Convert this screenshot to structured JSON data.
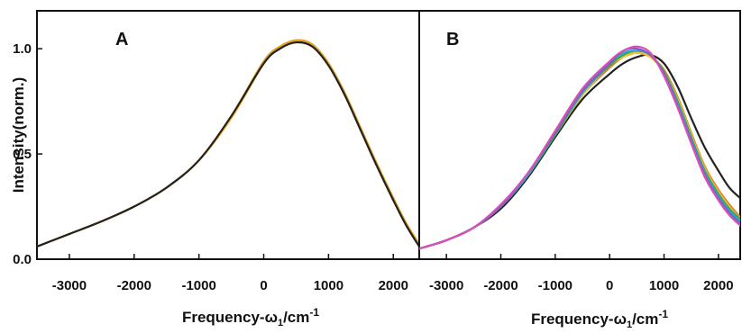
{
  "chart_data": [
    {
      "type": "line",
      "panel_label": "A",
      "xlabel_main": "Frequency-ω",
      "xlabel_sub": "1",
      "xlabel_unit": "/cm",
      "xlabel_sup": "-1",
      "ylabel": "Intensity(norm.)",
      "xlim": [
        -3500,
        2400
      ],
      "ylim": [
        0,
        1.18
      ],
      "xticks": [
        -3000,
        -2000,
        -1000,
        0,
        1000,
        2000
      ],
      "xtick_labels": [
        "-3000",
        "-2000",
        "-1000",
        "0",
        "1000",
        "2000"
      ],
      "yticks": [
        0,
        0.5,
        1.0
      ],
      "ytick_labels": [
        "0.0",
        "0.5",
        "1.0"
      ],
      "grid": false,
      "series": [
        {
          "color": "#f2c12e",
          "x": [
            -3500,
            -3000,
            -2500,
            -2000,
            -1500,
            -1000,
            -500,
            0,
            250,
            500,
            750,
            1000,
            1250,
            1500,
            1750,
            2000,
            2200,
            2400
          ],
          "y": [
            0.06,
            0.12,
            0.18,
            0.25,
            0.34,
            0.47,
            0.68,
            0.93,
            1.0,
            1.04,
            1.02,
            0.93,
            0.79,
            0.62,
            0.45,
            0.29,
            0.17,
            0.07
          ]
        },
        {
          "color": "#f5b82a",
          "x": [
            -3500,
            -3000,
            -2500,
            -2000,
            -1500,
            -1000,
            -500,
            0,
            250,
            500,
            750,
            1000,
            1250,
            1500,
            1750,
            2000,
            2200,
            2400
          ],
          "y": [
            0.06,
            0.12,
            0.18,
            0.25,
            0.34,
            0.47,
            0.67,
            0.93,
            1.0,
            1.03,
            1.01,
            0.92,
            0.78,
            0.61,
            0.44,
            0.28,
            0.16,
            0.07
          ]
        },
        {
          "color": "#e0a020",
          "x": [
            -3500,
            -3000,
            -2500,
            -2000,
            -1500,
            -1000,
            -500,
            0,
            250,
            500,
            750,
            1000,
            1250,
            1500,
            1750,
            2000,
            2200,
            2400
          ],
          "y": [
            0.06,
            0.12,
            0.18,
            0.25,
            0.34,
            0.47,
            0.68,
            0.94,
            1.01,
            1.04,
            1.02,
            0.93,
            0.79,
            0.62,
            0.45,
            0.29,
            0.17,
            0.07
          ]
        },
        {
          "color": "#222222",
          "x": [
            -3500,
            -3000,
            -2500,
            -2000,
            -1500,
            -1000,
            -500,
            0,
            250,
            500,
            750,
            1000,
            1250,
            1500,
            1750,
            2000,
            2200,
            2400
          ],
          "y": [
            0.06,
            0.12,
            0.18,
            0.25,
            0.34,
            0.47,
            0.68,
            0.93,
            1.0,
            1.03,
            1.01,
            0.92,
            0.78,
            0.61,
            0.44,
            0.28,
            0.16,
            0.06
          ]
        }
      ]
    },
    {
      "type": "line",
      "panel_label": "B",
      "xlabel_main": "Frequency-ω",
      "xlabel_sub": "1",
      "xlabel_unit": "/cm",
      "xlabel_sup": "-1",
      "xlim": [
        -3500,
        2400
      ],
      "ylim": [
        0,
        1.18
      ],
      "xticks": [
        -3000,
        -2000,
        -1000,
        0,
        1000,
        2000
      ],
      "xtick_labels": [
        "-3000",
        "-2000",
        "-1000",
        "0",
        "1000",
        "2000"
      ],
      "grid": false,
      "series": [
        {
          "color": "#222222",
          "x": [
            -3500,
            -3000,
            -2500,
            -2000,
            -1500,
            -1000,
            -500,
            0,
            250,
            500,
            750,
            1000,
            1250,
            1500,
            1750,
            2000,
            2200,
            2400
          ],
          "y": [
            0.05,
            0.09,
            0.15,
            0.24,
            0.39,
            0.58,
            0.76,
            0.88,
            0.93,
            0.96,
            0.97,
            0.93,
            0.82,
            0.67,
            0.53,
            0.42,
            0.34,
            0.29
          ]
        },
        {
          "color": "#e07b2a",
          "x": [
            -3500,
            -3000,
            -2500,
            -2000,
            -1500,
            -1000,
            -500,
            0,
            250,
            500,
            750,
            1000,
            1250,
            1500,
            1750,
            2000,
            2200,
            2400
          ],
          "y": [
            0.05,
            0.09,
            0.15,
            0.25,
            0.4,
            0.59,
            0.78,
            0.91,
            0.96,
            0.98,
            0.96,
            0.9,
            0.77,
            0.6,
            0.44,
            0.33,
            0.26,
            0.2
          ]
        },
        {
          "color": "#f2c12e",
          "x": [
            -3500,
            -3000,
            -2500,
            -2000,
            -1500,
            -1000,
            -500,
            0,
            250,
            500,
            750,
            1000,
            1250,
            1500,
            1750,
            2000,
            2200,
            2400
          ],
          "y": [
            0.05,
            0.09,
            0.15,
            0.25,
            0.4,
            0.59,
            0.78,
            0.92,
            0.96,
            0.98,
            0.96,
            0.89,
            0.76,
            0.59,
            0.43,
            0.32,
            0.25,
            0.19
          ]
        },
        {
          "color": "#3aa655",
          "x": [
            -3500,
            -3000,
            -2500,
            -2000,
            -1500,
            -1000,
            -500,
            0,
            250,
            500,
            750,
            1000,
            1250,
            1500,
            1750,
            2000,
            2200,
            2400
          ],
          "y": [
            0.05,
            0.09,
            0.15,
            0.25,
            0.4,
            0.59,
            0.79,
            0.92,
            0.97,
            0.99,
            0.97,
            0.89,
            0.75,
            0.58,
            0.42,
            0.31,
            0.24,
            0.19
          ]
        },
        {
          "color": "#2aa7c9",
          "x": [
            -3500,
            -3000,
            -2500,
            -2000,
            -1500,
            -1000,
            -500,
            0,
            250,
            500,
            750,
            1000,
            1250,
            1500,
            1750,
            2000,
            2200,
            2400
          ],
          "y": [
            0.05,
            0.09,
            0.15,
            0.25,
            0.4,
            0.6,
            0.79,
            0.93,
            0.98,
            0.99,
            0.97,
            0.88,
            0.74,
            0.57,
            0.41,
            0.3,
            0.23,
            0.18
          ]
        },
        {
          "color": "#7c5cc4",
          "x": [
            -3500,
            -3000,
            -2500,
            -2000,
            -1500,
            -1000,
            -500,
            0,
            250,
            500,
            750,
            1000,
            1250,
            1500,
            1750,
            2000,
            2200,
            2400
          ],
          "y": [
            0.05,
            0.09,
            0.15,
            0.25,
            0.41,
            0.6,
            0.8,
            0.93,
            0.99,
            1.0,
            0.97,
            0.88,
            0.73,
            0.56,
            0.4,
            0.29,
            0.22,
            0.17
          ]
        },
        {
          "color": "#d94fb8",
          "x": [
            -3500,
            -3000,
            -2500,
            -2000,
            -1500,
            -1000,
            -500,
            0,
            250,
            500,
            750,
            1000,
            1250,
            1500,
            1750,
            2000,
            2200,
            2400
          ],
          "y": [
            0.05,
            0.09,
            0.15,
            0.26,
            0.41,
            0.61,
            0.81,
            0.94,
            0.99,
            1.01,
            0.98,
            0.87,
            0.72,
            0.55,
            0.39,
            0.28,
            0.21,
            0.16
          ]
        }
      ]
    }
  ]
}
